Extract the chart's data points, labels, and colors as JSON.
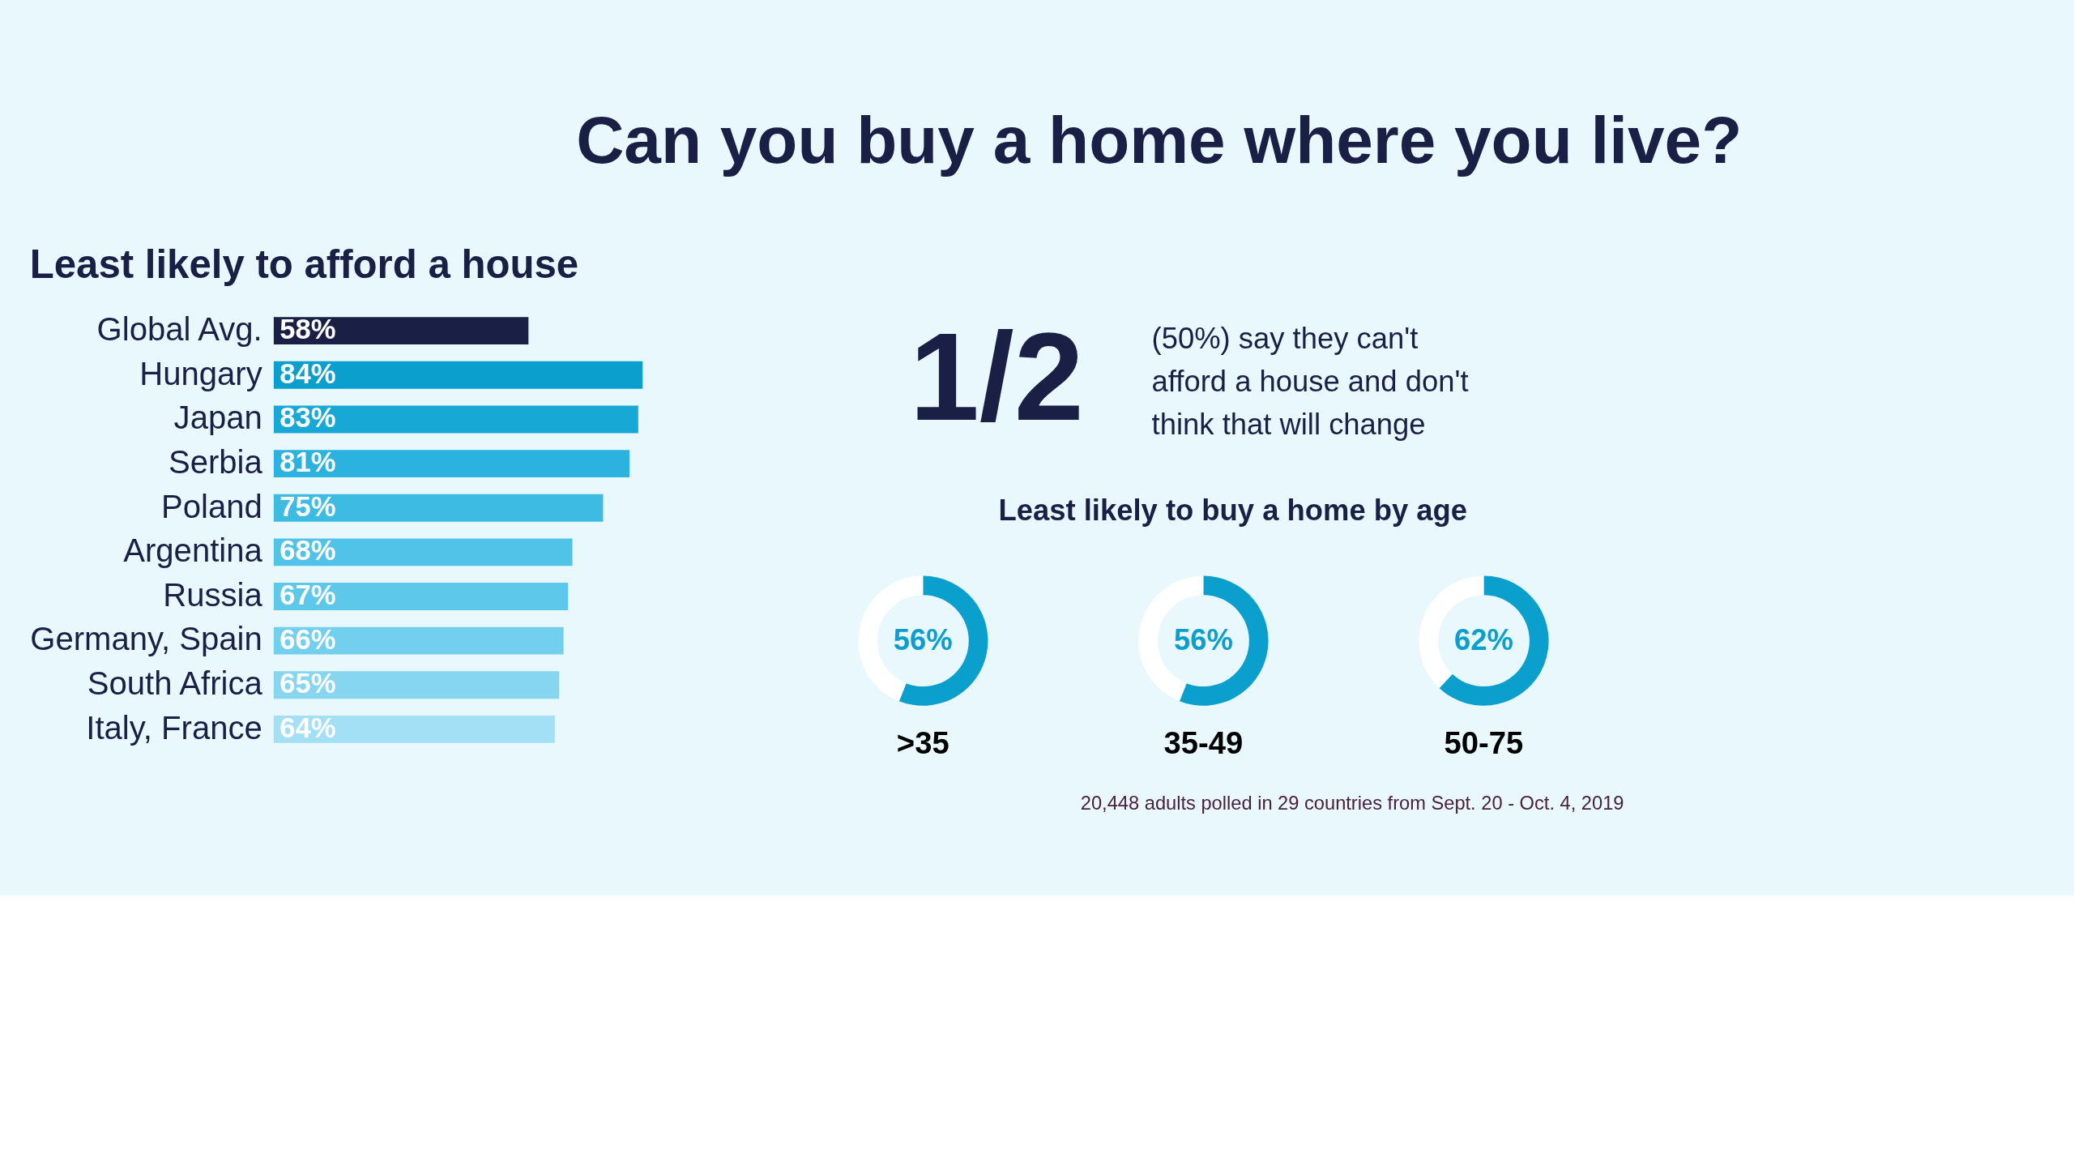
{
  "chart_data": [
    {
      "type": "other",
      "title": "Can you buy a home where you live?"
    },
    {
      "type": "bar",
      "orientation": "horizontal",
      "title": "Least likely to afford a house",
      "tick_labels": "y",
      "categories": [
        "Global Avg.",
        "Hungary",
        "Japan",
        "Serbia",
        "Poland",
        "Argentina",
        "Russia",
        "Germany, Spain",
        "South Africa",
        "Italy, France"
      ],
      "values": [
        58,
        84,
        83,
        81,
        75,
        68,
        67,
        66,
        65,
        64
      ],
      "value_labels": [
        "58%",
        "84%",
        "83%",
        "81%",
        "75%",
        "68%",
        "67%",
        "66%",
        "65%",
        "64%"
      ],
      "colors": [
        "#1a1f45",
        "#0a9fcc",
        "#17a8d6",
        "#2bb2de",
        "#3dbbe3",
        "#52c3e8",
        "#5ec8eb",
        "#72cfee",
        "#86d6f1",
        "#a3e0f5"
      ]
    },
    {
      "type": "other",
      "annotations": [
        "1/2",
        "(50%) say they can't afford a house and don't think that will change"
      ]
    },
    {
      "type": "other",
      "title": "Least likely to buy a home by age"
    },
    {
      "type": "donut",
      "title": ">35",
      "categories": [
        null,
        null
      ],
      "values": [
        56,
        44
      ],
      "value_labels": [
        "56%",
        null
      ],
      "colors": [
        "#0a9fcc",
        "#ffffff"
      ]
    },
    {
      "type": "donut",
      "title": "35-49",
      "categories": [
        null,
        null
      ],
      "values": [
        56,
        44
      ],
      "value_labels": [
        "56%",
        null
      ],
      "colors": [
        "#0a9fcc",
        "#ffffff"
      ]
    },
    {
      "type": "donut",
      "title": "50-75",
      "categories": [
        null,
        null
      ],
      "values": [
        62,
        38
      ],
      "value_labels": [
        "62%",
        null
      ],
      "colors": [
        "#0a9fcc",
        "#ffffff"
      ]
    },
    {
      "type": "other",
      "annotations": [
        "20,448 adults polled in 29 countries from Sept. 20 - Oct. 4, 2019"
      ]
    }
  ]
}
